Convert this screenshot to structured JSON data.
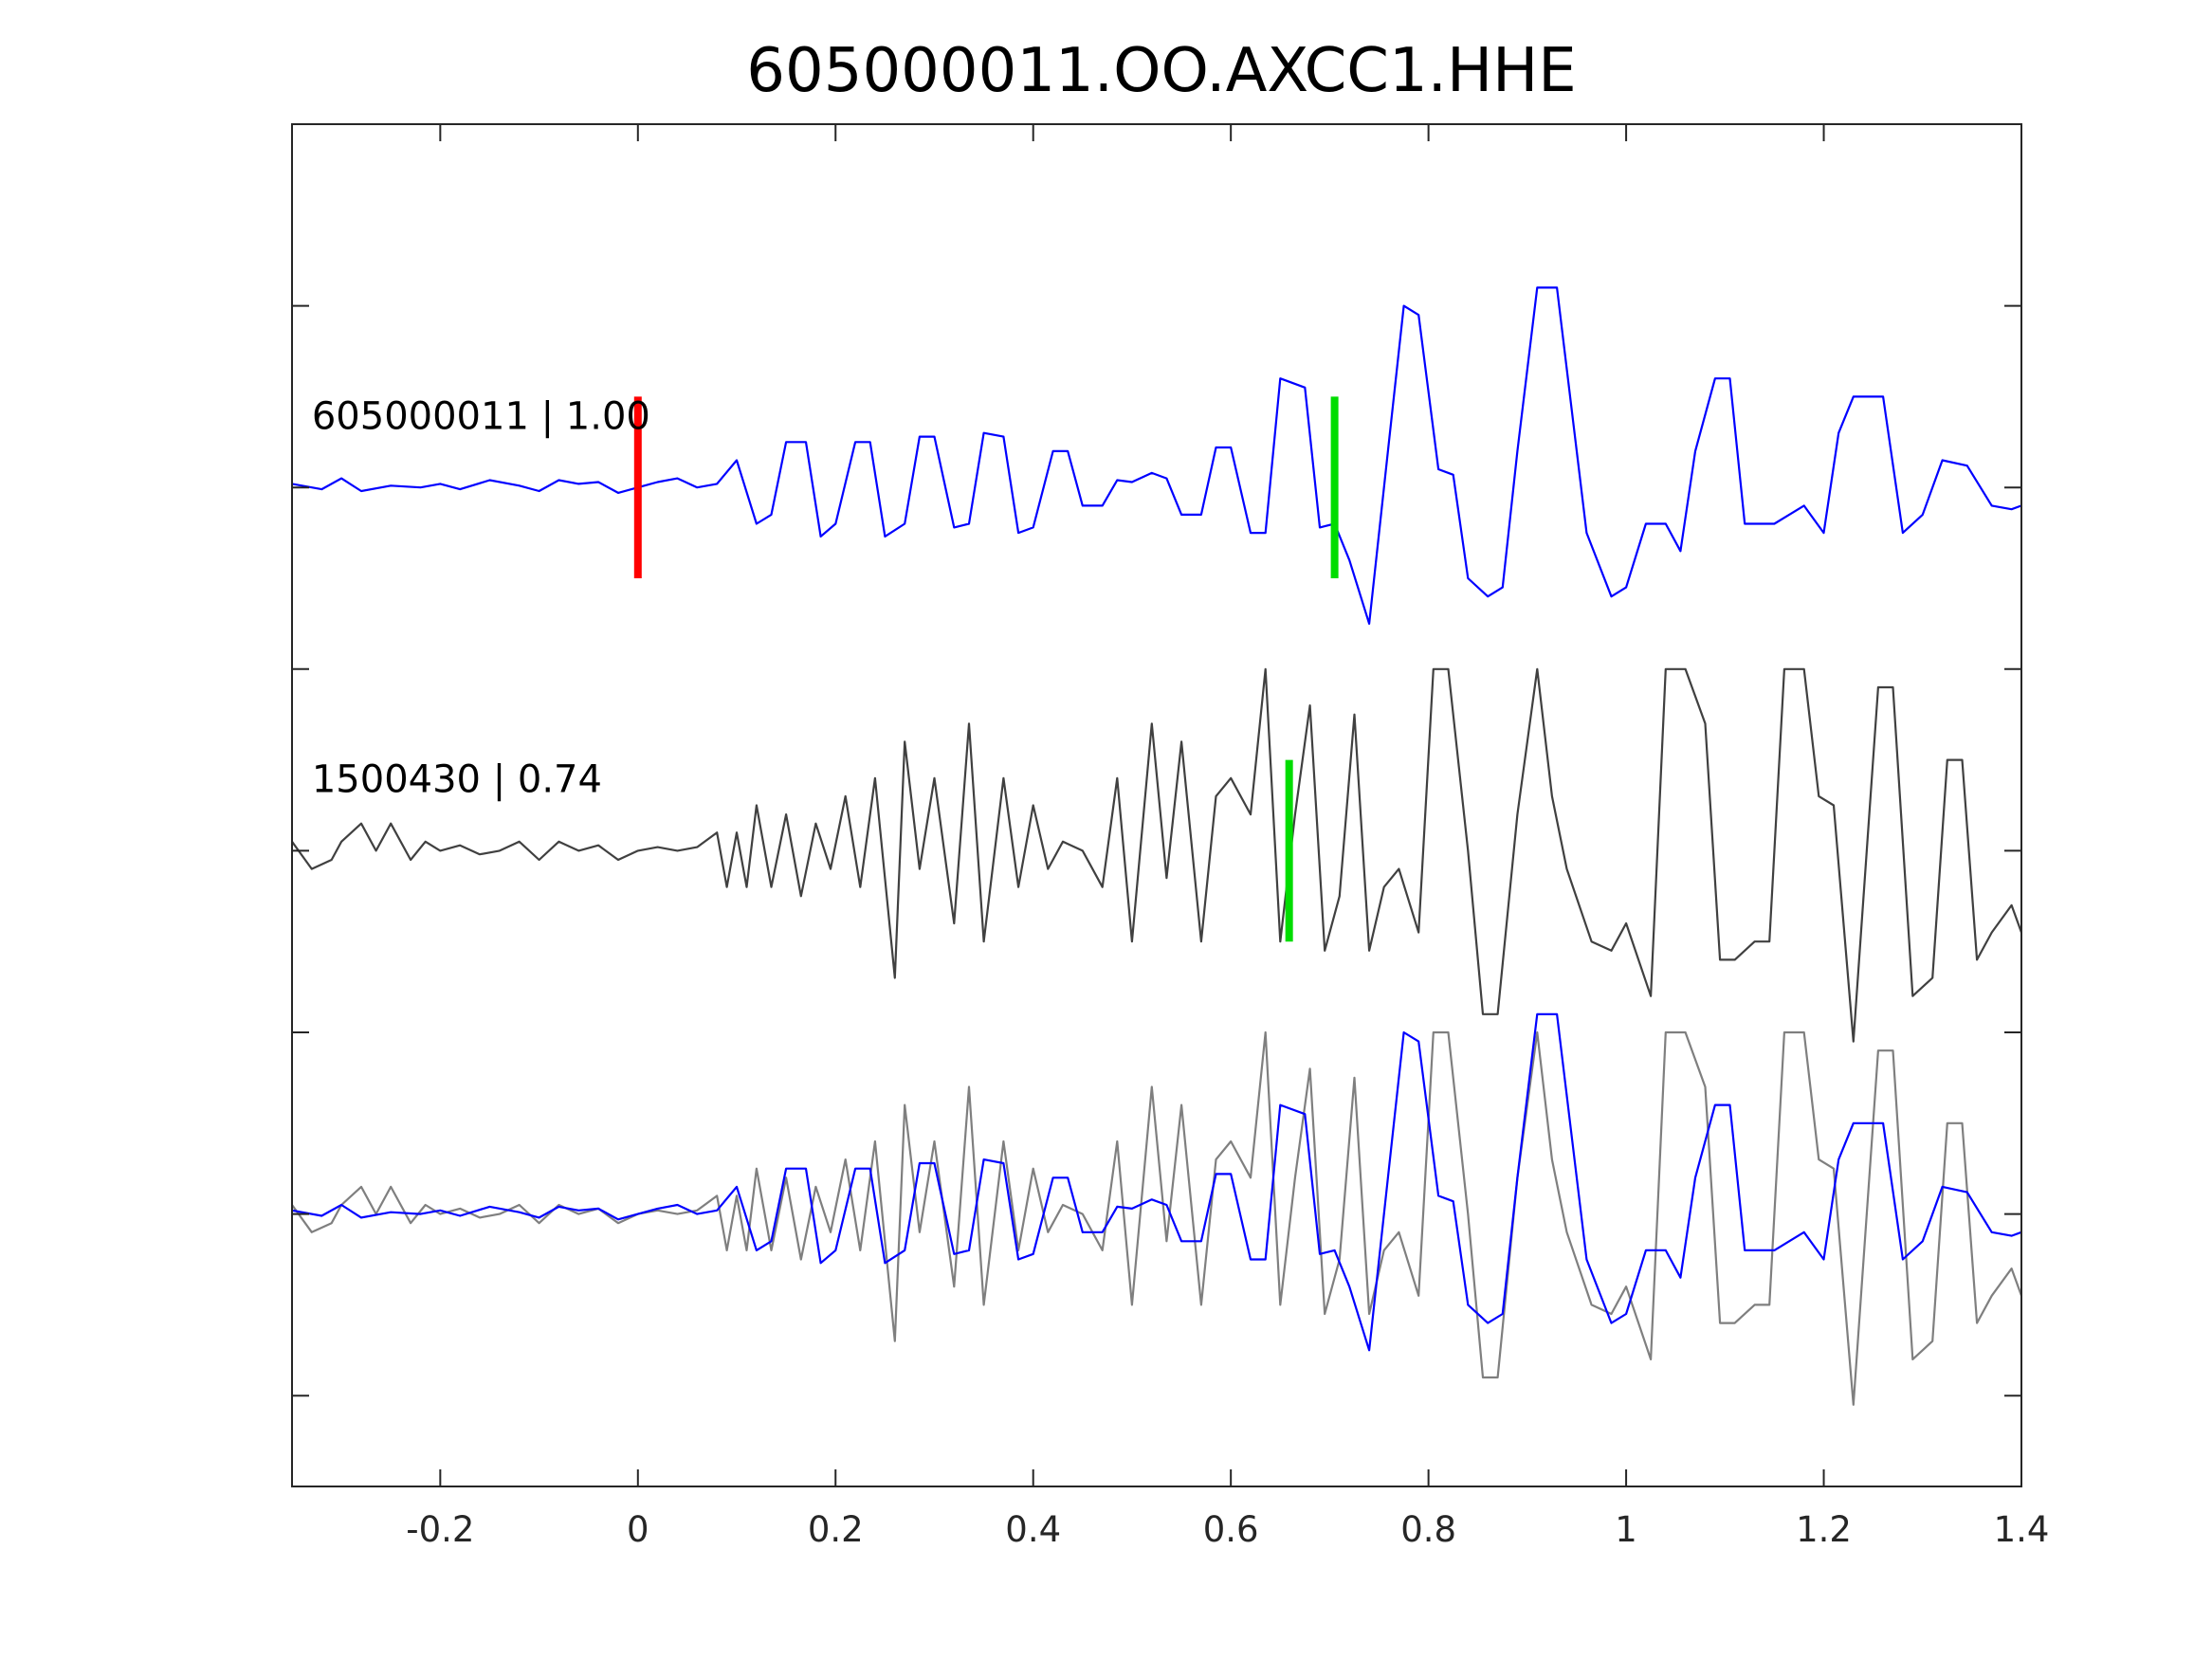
{
  "chart_data": {
    "type": "line",
    "title": "605000011.OO.AXCC1.HHE",
    "xlabel": "",
    "ylabel": "",
    "xlim": [
      -0.35,
      1.4
    ],
    "ylim": [
      0,
      7.5
    ],
    "x_ticks": [
      -0.2,
      0,
      0.2,
      0.4,
      0.6,
      0.8,
      1,
      1.2,
      1.4
    ],
    "x_tick_labels": [
      "-0.2",
      "0",
      "0.2",
      "0.4",
      "0.6",
      "0.8",
      "1",
      "1.2",
      "1.4"
    ],
    "y_ticks": [
      0.5,
      1.5,
      2.5,
      3.5,
      4.5,
      5.5,
      6.5
    ],
    "y_tick_labels": [
      "",
      "",
      "",
      "",
      "",
      "",
      ""
    ],
    "grid": false,
    "colors": {
      "template": "#0000ff",
      "trace": "#404040",
      "overlay_trace": "#7f7f7f",
      "origin_pick": "#ff0000",
      "phase_pick": "#00dd00"
    },
    "labels": [
      {
        "text": "605000011 | 1.00",
        "x": -0.33,
        "y": 6.0
      },
      {
        "text": "1500430 | 0.74",
        "x": -0.33,
        "y": 4.0
      }
    ],
    "markers": [
      {
        "type": "origin",
        "x": 0.0,
        "y_from": 5.0,
        "y_to": 6.0
      },
      {
        "type": "phase",
        "x": 0.705,
        "y_from": 5.0,
        "y_to": 6.0
      },
      {
        "type": "phase",
        "x": 0.659,
        "y_from": 3.0,
        "y_to": 4.0
      }
    ],
    "series": [
      {
        "role": "template",
        "offset": 5.5,
        "x": [
          -0.35,
          -0.32,
          -0.3,
          -0.28,
          -0.25,
          -0.22,
          -0.2,
          -0.18,
          -0.15,
          -0.12,
          -0.1,
          -0.08,
          -0.06,
          -0.04,
          -0.02,
          0.0,
          0.02,
          0.04,
          0.06,
          0.08,
          0.1,
          0.12,
          0.135,
          0.15,
          0.17,
          0.185,
          0.2,
          0.22,
          0.235,
          0.25,
          0.27,
          0.285,
          0.3,
          0.32,
          0.335,
          0.35,
          0.37,
          0.385,
          0.4,
          0.42,
          0.435,
          0.45,
          0.47,
          0.485,
          0.5,
          0.52,
          0.535,
          0.55,
          0.57,
          0.585,
          0.6,
          0.62,
          0.635,
          0.65,
          0.675,
          0.69,
          0.705,
          0.72,
          0.74,
          0.76,
          0.775,
          0.79,
          0.81,
          0.825,
          0.84,
          0.86,
          0.875,
          0.89,
          0.91,
          0.93,
          0.96,
          0.985,
          1.0,
          1.02,
          1.04,
          1.055,
          1.07,
          1.09,
          1.105,
          1.12,
          1.15,
          1.165,
          1.18,
          1.2,
          1.215,
          1.23,
          1.26,
          1.28,
          1.3,
          1.32,
          1.345,
          1.37,
          1.39,
          1.4
        ],
        "y": [
          0.02,
          -0.01,
          0.05,
          -0.02,
          0.01,
          0.0,
          0.02,
          -0.01,
          0.04,
          0.01,
          -0.02,
          0.04,
          0.02,
          0.03,
          -0.03,
          0.0,
          0.03,
          0.05,
          0.0,
          0.02,
          0.15,
          -0.2,
          -0.15,
          0.25,
          0.25,
          -0.27,
          -0.2,
          0.25,
          0.25,
          -0.27,
          -0.2,
          0.28,
          0.28,
          -0.22,
          -0.2,
          0.3,
          0.28,
          -0.25,
          -0.22,
          0.2,
          0.2,
          -0.1,
          -0.1,
          0.04,
          0.03,
          0.08,
          0.05,
          -0.15,
          -0.15,
          0.22,
          0.22,
          -0.25,
          -0.25,
          0.6,
          0.55,
          -0.22,
          -0.2,
          -0.4,
          -0.75,
          0.25,
          1.0,
          0.95,
          0.1,
          0.07,
          -0.5,
          -0.6,
          -0.55,
          0.2,
          1.1,
          1.1,
          -0.25,
          -0.6,
          -0.55,
          -0.2,
          -0.2,
          -0.35,
          0.2,
          0.6,
          0.6,
          -0.2,
          -0.2,
          -0.15,
          -0.1,
          -0.25,
          0.3,
          0.5,
          0.5,
          -0.25,
          -0.15,
          0.15,
          0.12,
          -0.1,
          -0.12,
          -0.1
        ]
      },
      {
        "role": "trace",
        "offset": 3.5,
        "x": [
          -0.35,
          -0.33,
          -0.31,
          -0.3,
          -0.28,
          -0.265,
          -0.25,
          -0.23,
          -0.215,
          -0.2,
          -0.18,
          -0.16,
          -0.14,
          -0.12,
          -0.1,
          -0.08,
          -0.06,
          -0.04,
          -0.02,
          0.0,
          0.02,
          0.04,
          0.06,
          0.08,
          0.09,
          0.1,
          0.11,
          0.12,
          0.135,
          0.15,
          0.165,
          0.18,
          0.195,
          0.21,
          0.225,
          0.24,
          0.26,
          0.27,
          0.285,
          0.3,
          0.32,
          0.335,
          0.35,
          0.37,
          0.385,
          0.4,
          0.415,
          0.43,
          0.45,
          0.47,
          0.485,
          0.5,
          0.52,
          0.535,
          0.55,
          0.57,
          0.585,
          0.6,
          0.62,
          0.635,
          0.65,
          0.665,
          0.68,
          0.695,
          0.71,
          0.725,
          0.74,
          0.755,
          0.77,
          0.79,
          0.805,
          0.82,
          0.84,
          0.855,
          0.87,
          0.89,
          0.91,
          0.925,
          0.94,
          0.965,
          0.985,
          1.0,
          1.025,
          1.04,
          1.06,
          1.08,
          1.095,
          1.11,
          1.13,
          1.145,
          1.16,
          1.18,
          1.195,
          1.21,
          1.23,
          1.255,
          1.27,
          1.29,
          1.31,
          1.325,
          1.34,
          1.355,
          1.37,
          1.39,
          1.4
        ],
        "y": [
          0.05,
          -0.1,
          -0.05,
          0.05,
          0.15,
          0.0,
          0.15,
          -0.05,
          0.05,
          0.0,
          0.03,
          -0.02,
          0.0,
          0.05,
          -0.05,
          0.05,
          0.0,
          0.03,
          -0.05,
          0.0,
          0.02,
          0.0,
          0.02,
          0.1,
          -0.2,
          0.1,
          -0.2,
          0.25,
          -0.2,
          0.2,
          -0.25,
          0.15,
          -0.1,
          0.3,
          -0.2,
          0.4,
          -0.7,
          0.6,
          -0.1,
          0.4,
          -0.4,
          0.7,
          -0.5,
          0.4,
          -0.2,
          0.25,
          -0.1,
          0.05,
          0.0,
          -0.2,
          0.4,
          -0.5,
          0.7,
          -0.15,
          0.6,
          -0.5,
          0.3,
          0.4,
          0.2,
          1.0,
          -0.5,
          0.2,
          0.8,
          -0.55,
          -0.25,
          0.75,
          -0.55,
          -0.2,
          -0.1,
          -0.45,
          1.0,
          1.0,
          0.0,
          -0.9,
          -0.9,
          0.2,
          1.0,
          0.3,
          -0.1,
          -0.5,
          -0.55,
          -0.4,
          -0.8,
          1.0,
          1.0,
          0.7,
          -0.6,
          -0.6,
          -0.5,
          -0.5,
          1.0,
          1.0,
          0.3,
          0.25,
          -1.05,
          0.9,
          0.9,
          -0.8,
          -0.7,
          0.5,
          0.5,
          -0.6,
          -0.45,
          -0.3,
          -0.45
        ]
      },
      {
        "role": "overlay_trace",
        "offset": 1.5,
        "source": "trace"
      },
      {
        "role": "overlay_template",
        "offset": 1.5,
        "source": "template"
      }
    ]
  }
}
